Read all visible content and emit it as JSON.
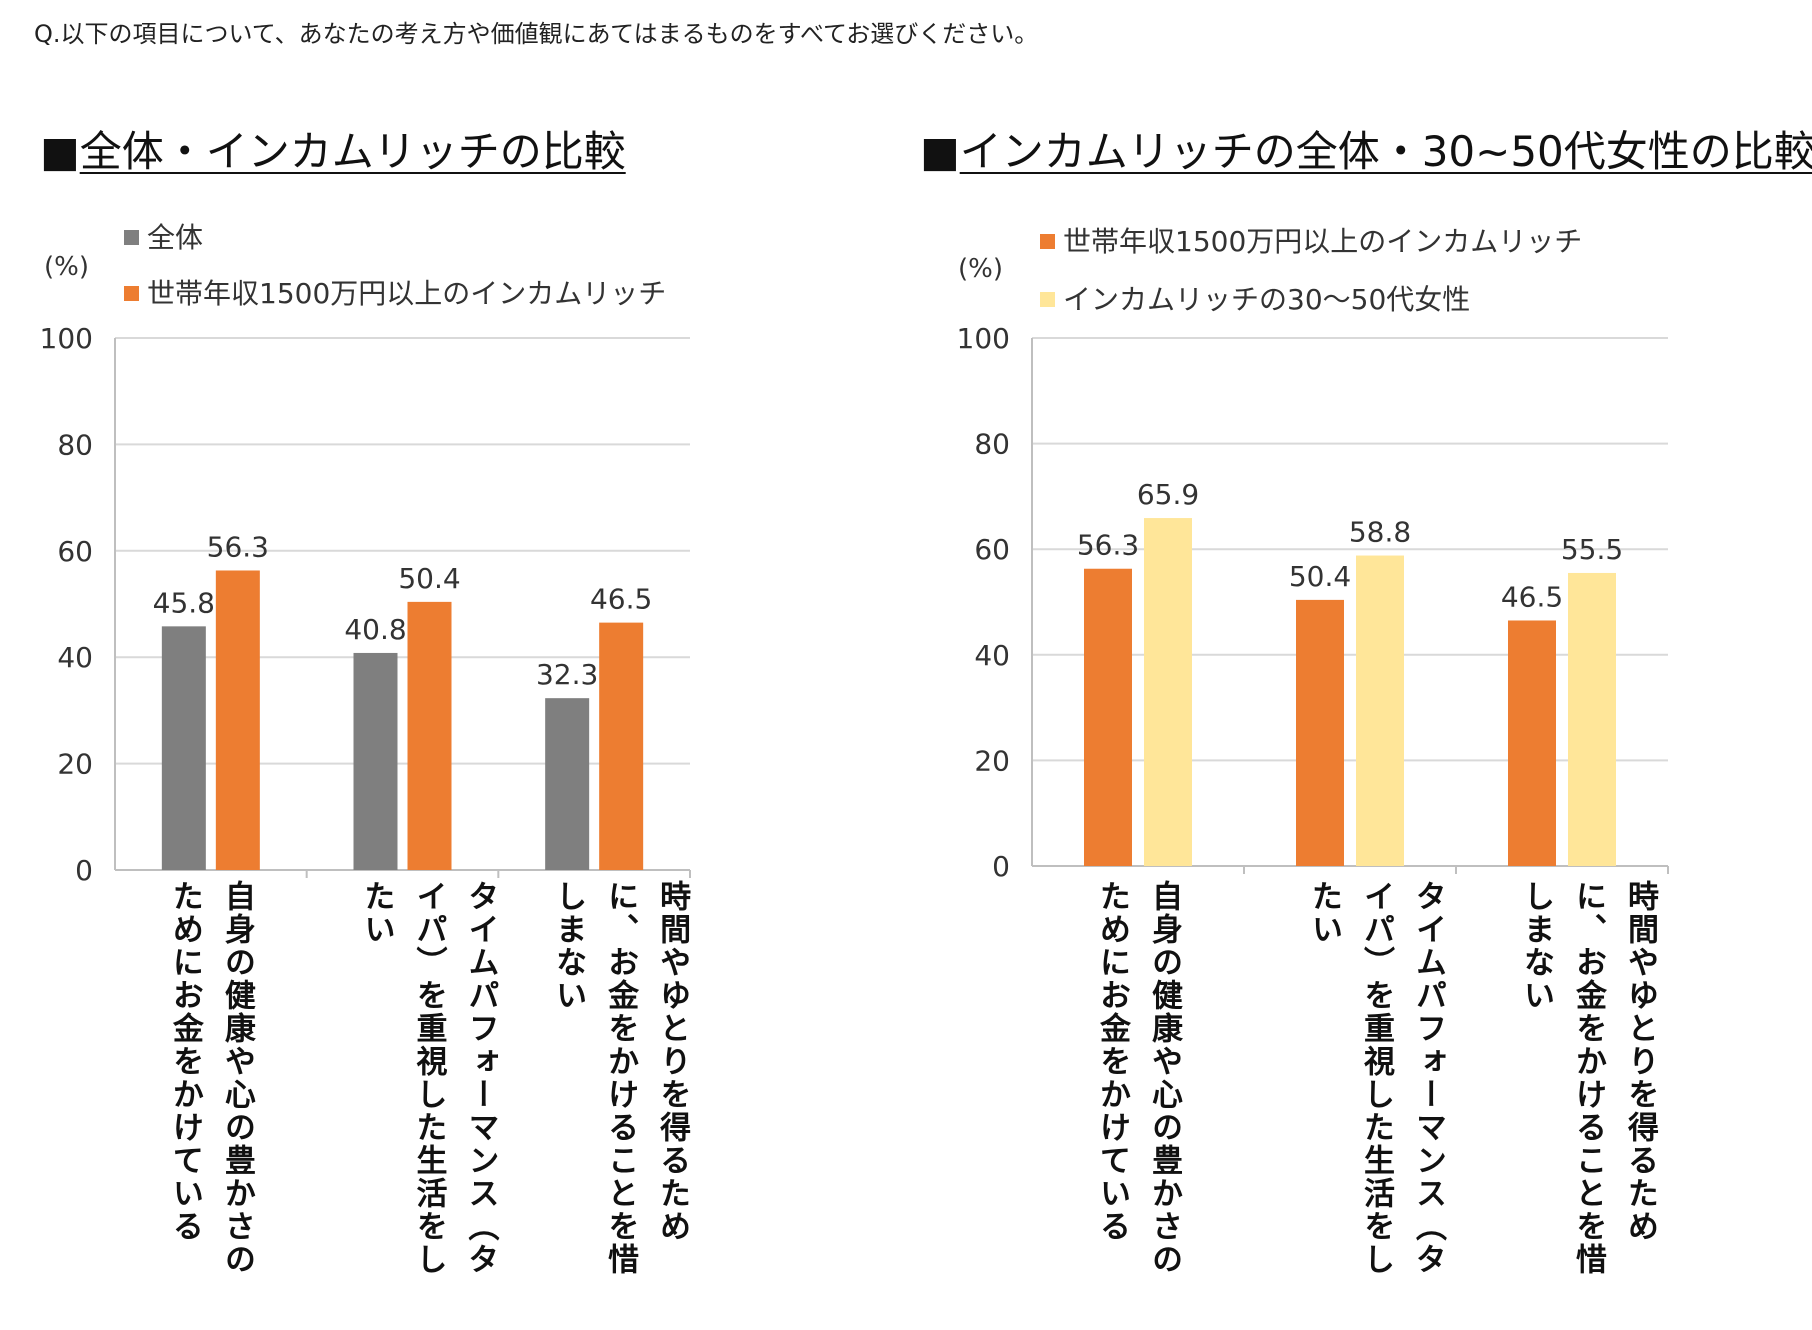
{
  "question": "Q.以下の項目について、あなたの考え方や価値観にあてはまるものをすべてお選びください。",
  "panel_marker": "■",
  "left": {
    "title": "全体・インカムリッチの比較",
    "unit": "(%)",
    "legend": [
      {
        "label": "全体",
        "color": "#7f7f7f"
      },
      {
        "label": "世帯年収1500万円以上のインカムリッチ",
        "color": "#ed7d31"
      }
    ]
  },
  "right": {
    "title": "インカムリッチの全体・30~50代女性の比較",
    "unit": "(%)",
    "legend": [
      {
        "label": "世帯年収1500万円以上のインカムリッチ",
        "color": "#ed7d31"
      },
      {
        "label": "インカムリッチの30〜50代女性",
        "color": "#ffe699"
      }
    ]
  },
  "chart_data": [
    {
      "type": "bar",
      "title": "全体・インカムリッチの比較",
      "ylabel": "(%)",
      "ylim": [
        0,
        100
      ],
      "yticks": [
        0,
        20,
        40,
        60,
        80,
        100
      ],
      "categories": [
        "自身の健康や心の豊かさのためにお金をかけている",
        "タイムパフォーマンス（タイパ）を重視した生活をしたい",
        "時間やゆとりを得るために、お金をかけることを惜しまない"
      ],
      "series": [
        {
          "name": "全体",
          "color": "#7f7f7f",
          "values": [
            45.8,
            40.8,
            32.3
          ]
        },
        {
          "name": "世帯年収1500万円以上のインカムリッチ",
          "color": "#ed7d31",
          "values": [
            56.3,
            50.4,
            46.5
          ]
        }
      ]
    },
    {
      "type": "bar",
      "title": "インカムリッチの全体・30~50代女性の比較",
      "ylabel": "(%)",
      "ylim": [
        0,
        100
      ],
      "yticks": [
        0,
        20,
        40,
        60,
        80,
        100
      ],
      "categories": [
        "自身の健康や心の豊かさのためにお金をかけている",
        "タイムパフォーマンス（タイパ）を重視した生活をしたい",
        "時間やゆとりを得るために、お金をかけることを惜しまない"
      ],
      "series": [
        {
          "name": "世帯年収1500万円以上のインカムリッチ",
          "color": "#ed7d31",
          "values": [
            56.3,
            50.4,
            46.5
          ]
        },
        {
          "name": "インカムリッチの30〜50代女性",
          "color": "#ffe699",
          "values": [
            65.9,
            58.8,
            55.5
          ]
        }
      ]
    }
  ]
}
